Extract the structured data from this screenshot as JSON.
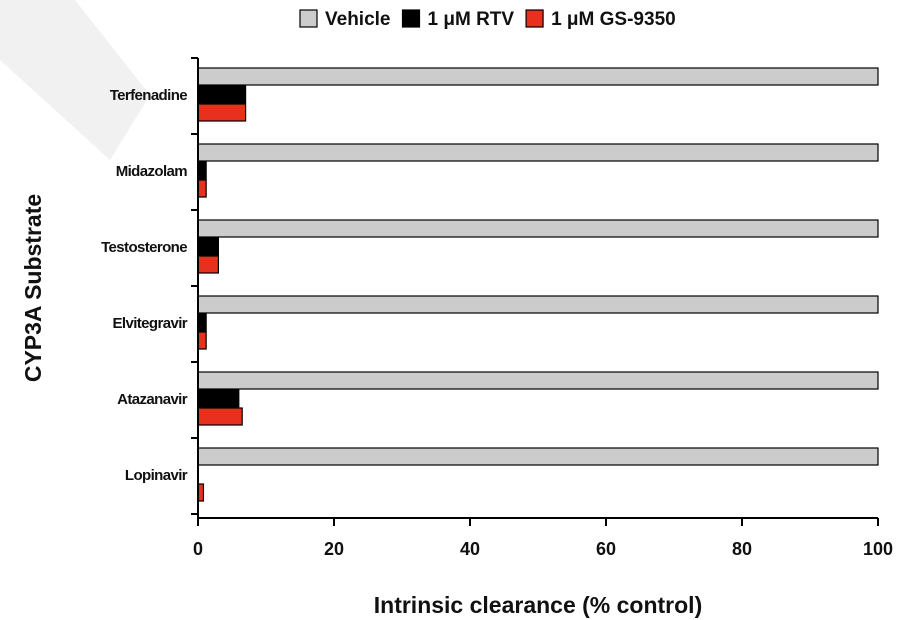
{
  "chart_data": {
    "type": "bar",
    "orientation": "horizontal",
    "xlabel": "Intrinsic clearance (% control)",
    "ylabel": "CYP3A Substrate",
    "xlim": [
      0,
      100
    ],
    "xticks": [
      "0",
      "20",
      "40",
      "60",
      "80",
      "100"
    ],
    "categories": [
      "Terfenadine",
      "Midazolam",
      "Testosterone",
      "Elvitegravir",
      "Atazanavir",
      "Lopinavir"
    ],
    "series": [
      {
        "name": "Vehicle",
        "color": "#cccccc",
        "values": [
          100,
          100,
          100,
          100,
          100,
          100
        ]
      },
      {
        "name": "1 μM RTV",
        "color": "#000000",
        "values": [
          7,
          1.2,
          3,
          1.2,
          6,
          0
        ]
      },
      {
        "name": "1 μM GS-9350",
        "color": "#e8301f",
        "values": [
          7,
          1.2,
          3,
          1.2,
          6.5,
          0.8
        ]
      }
    ],
    "legend_position": "top",
    "grid": false
  }
}
